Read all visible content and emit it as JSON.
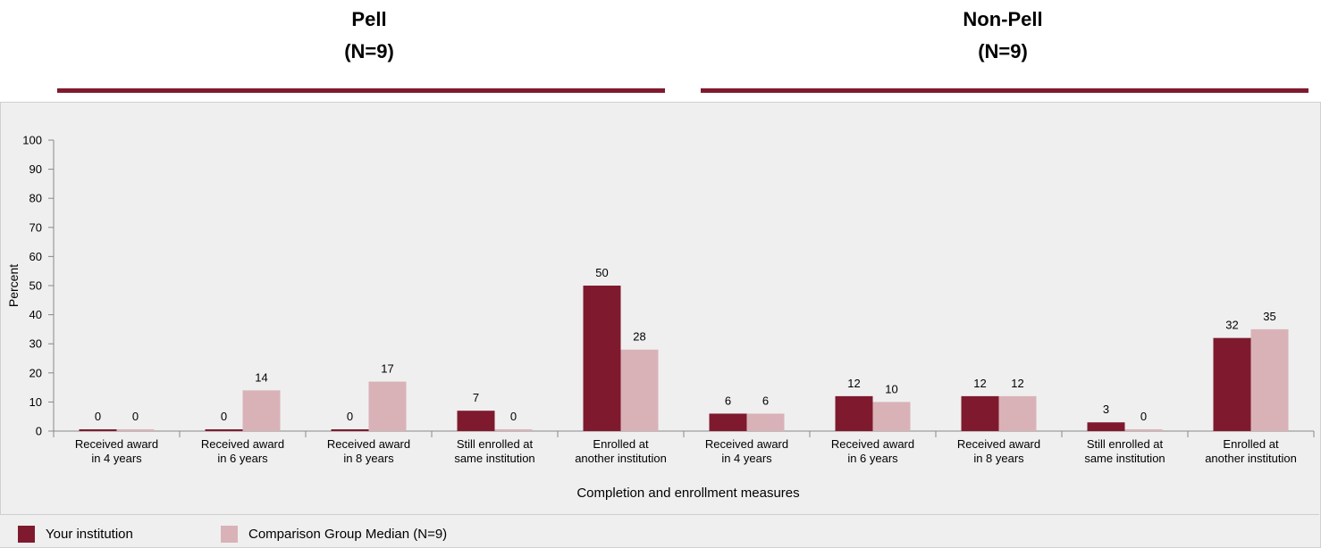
{
  "groups": [
    {
      "title": "Pell",
      "subtitle": "(N=9)"
    },
    {
      "title": "Non-Pell",
      "subtitle": "(N=9)"
    }
  ],
  "legend": {
    "your_institution": "Your institution",
    "comparison": "Comparison Group Median (N=9)"
  },
  "colors": {
    "your_institution": "#7f1a2e",
    "comparison": "#d9b2b8",
    "rule": "#7f1a2e"
  },
  "chart_data": {
    "type": "bar",
    "ylabel": "Percent",
    "xlabel": "Completion and enrollment measures",
    "ylim": [
      0,
      100
    ],
    "yticks": [
      0,
      10,
      20,
      30,
      40,
      50,
      60,
      70,
      80,
      90,
      100
    ],
    "categories": [
      [
        "Received award",
        "in 4 years"
      ],
      [
        "Received award",
        "in 6 years"
      ],
      [
        "Received award",
        "in 8 years"
      ],
      [
        "Still enrolled at",
        "same institution"
      ],
      [
        "Enrolled at",
        "another institution"
      ],
      [
        "Received award",
        "in 4 years"
      ],
      [
        "Received award",
        "in 6 years"
      ],
      [
        "Received award",
        "in 8 years"
      ],
      [
        "Still enrolled at",
        "same institution"
      ],
      [
        "Enrolled at",
        "another institution"
      ]
    ],
    "series": [
      {
        "name": "Your institution",
        "values": [
          0,
          0,
          0,
          7,
          50,
          6,
          12,
          12,
          3,
          32
        ]
      },
      {
        "name": "Comparison Group Median (N=9)",
        "values": [
          0,
          14,
          17,
          0,
          28,
          6,
          10,
          12,
          0,
          35
        ]
      }
    ]
  }
}
